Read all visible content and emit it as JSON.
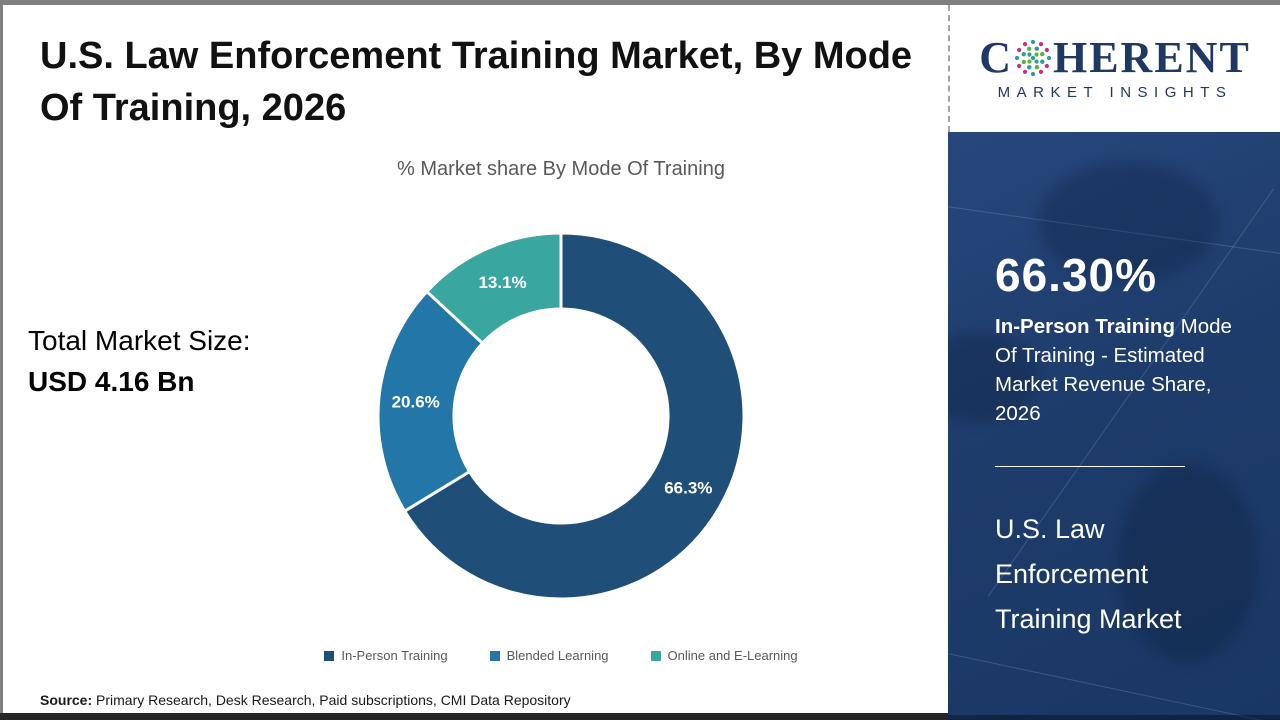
{
  "header": {
    "title_line1": "U.S. Law Enforcement Training Market, By Mode",
    "title_line2": "Of Training, 2026"
  },
  "chart_section": {
    "subtitle": "% Market share By Mode Of Training"
  },
  "total_market": {
    "label": "Total Market Size:",
    "value": "USD 4.16 Bn"
  },
  "chart_data": {
    "type": "pie",
    "subtype": "donut",
    "title": "% Market share By Mode Of Training",
    "categories": [
      "In-Person Training",
      "Blended Learning",
      "Online and E-Learning"
    ],
    "values": [
      66.3,
      20.6,
      13.1
    ],
    "slice_labels": [
      "66.3%",
      "20.6%",
      "13.1%"
    ],
    "colors": [
      "#1F4E79",
      "#2277A8",
      "#3AA6A0"
    ],
    "start_angle_deg": 0,
    "direction": "clockwise",
    "inner_radius_ratio": 0.585,
    "legend_position": "bottom"
  },
  "sidebar": {
    "logo": {
      "brand_pre": "C",
      "brand_post": "HERENT",
      "tagline": "MARKET INSIGHTS",
      "globe_icon": "dotted-globe-icon",
      "brand_color": "#1F3864"
    },
    "stat_value": "66.30%",
    "stat_desc_bold": "In-Person Training",
    "stat_desc_rest": " Mode Of Training - Estimated Market Revenue Share, 2026",
    "market_name_line1": "U.S. Law",
    "market_name_line2": "Enforcement",
    "market_name_line3": "Training Market",
    "background_color": "#1E3C6B"
  },
  "footer": {
    "source_label": "Source:",
    "source_text": " Primary Research, Desk Research, Paid subscriptions, CMI Data Repository"
  }
}
